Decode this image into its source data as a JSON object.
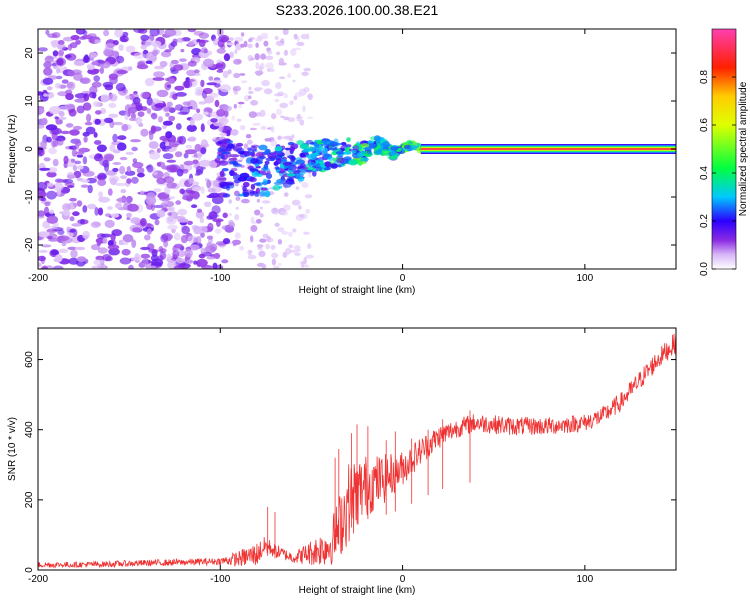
{
  "figure_title": "S233.2026.100.00.38.E21",
  "chart_data": [
    {
      "type": "heatmap",
      "title": "S233.2026.100.00.38.E21",
      "xlabel": "Height of straight line (km)",
      "ylabel": "Frequency (Hz)",
      "xlim": [
        -200,
        150
      ],
      "ylim": [
        -25,
        25
      ],
      "xticks": [
        -200,
        -100,
        0,
        100
      ],
      "yticks": [
        -20,
        -10,
        0,
        10,
        20
      ],
      "colorbar": {
        "label": "Normalized spectral amplitude",
        "range": [
          0,
          1
        ],
        "ticks": [
          0.0,
          0.2,
          0.4,
          0.6,
          0.8
        ],
        "tick_labels": [
          "0.0",
          "0.2",
          "0.4",
          "0.6",
          "0.8"
        ],
        "colormap": "rainbow (white→purple→blue→cyan→green→yellow→red→magenta)"
      },
      "features": [
        {
          "name": "scattered noise",
          "x_range": [
            -200,
            -95
          ],
          "freq_range": [
            -25,
            25
          ],
          "amplitude": 0.1
        },
        {
          "name": "diffuse noise",
          "x_range": [
            -95,
            -50
          ],
          "freq_range": [
            -25,
            25
          ],
          "amplitude": 0.05
        },
        {
          "name": "converging signal",
          "x_range": [
            -100,
            10
          ],
          "freq_range": [
            -8,
            3
          ],
          "amplitude": 0.3
        },
        {
          "name": "signal line",
          "x_range": [
            10,
            150
          ],
          "frequency": 0,
          "amplitude": 1.0
        }
      ]
    },
    {
      "type": "line",
      "xlabel": "Height of straight line (km)",
      "ylabel": "SNR (10 * v/v)",
      "xlim": [
        -200,
        150
      ],
      "ylim": [
        0,
        690
      ],
      "xticks": [
        -200,
        -100,
        0,
        100
      ],
      "yticks": [
        0,
        200,
        400,
        600
      ],
      "line_color": "#ef3333",
      "series": [
        {
          "name": "SNR",
          "x": [
            -200,
            -180,
            -160,
            -140,
            -120,
            -100,
            -90,
            -80,
            -75,
            -70,
            -65,
            -60,
            -50,
            -40,
            -35,
            -30,
            -25,
            -20,
            -15,
            -10,
            -5,
            0,
            5,
            10,
            15,
            20,
            30,
            40,
            50,
            60,
            70,
            80,
            90,
            100,
            110,
            120,
            130,
            140,
            150
          ],
          "values": [
            15,
            15,
            17,
            20,
            22,
            25,
            32,
            45,
            70,
            55,
            45,
            35,
            50,
            70,
            120,
            190,
            220,
            240,
            250,
            260,
            275,
            290,
            315,
            340,
            360,
            380,
            405,
            420,
            415,
            410,
            410,
            410,
            415,
            420,
            440,
            480,
            540,
            600,
            650
          ]
        }
      ],
      "noise": {
        "amplitude": [
          [
            -200,
            8
          ],
          [
            -100,
            10
          ],
          [
            -80,
            35
          ],
          [
            -70,
            20
          ],
          [
            -60,
            15
          ],
          [
            -40,
            60
          ],
          [
            -30,
            120
          ],
          [
            -20,
            90
          ],
          [
            -10,
            70
          ],
          [
            0,
            50
          ],
          [
            10,
            40
          ],
          [
            30,
            28
          ],
          [
            100,
            25
          ],
          [
            150,
            30
          ]
        ]
      },
      "spikes": [
        [
          -74,
          180
        ],
        [
          -70,
          165
        ],
        [
          -37,
          320
        ],
        [
          -35,
          345
        ],
        [
          -28,
          390
        ],
        [
          -25,
          415
        ],
        [
          -19,
          410
        ],
        [
          -9,
          370
        ],
        [
          -4,
          395
        ],
        [
          5,
          375
        ],
        [
          14,
          400
        ],
        [
          22,
          430
        ],
        [
          37,
          455
        ]
      ]
    }
  ]
}
